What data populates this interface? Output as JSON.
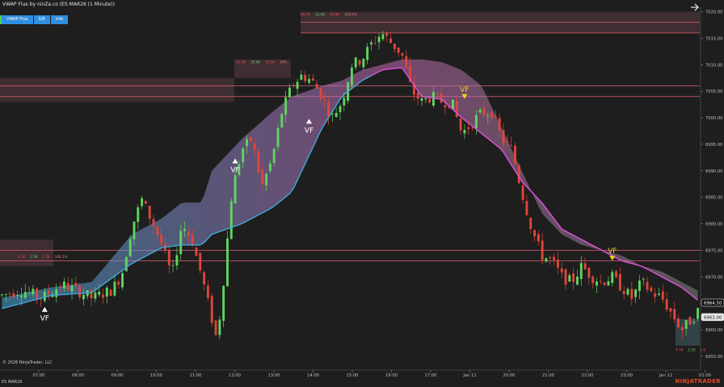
{
  "title": "VWAP Flux by ninZa.co (ES MAR26 (1 Minute))",
  "toolbar": [
    {
      "label": "VWAP Flux"
    },
    {
      "label": "S/R"
    },
    {
      "label": "Info"
    }
  ],
  "copyright": "© 2026 NinjaTrader, LLC",
  "instrument": "ES MAR26",
  "logo": "NINJATRADER",
  "signal_label": "VF",
  "colors": {
    "background": "#1e1e1e",
    "up_candle": "#5fd65f",
    "down_candle": "#e0463a",
    "vwap_bull": "#3fa8d8",
    "vwap_bear": "#e050e0",
    "signal_bull": "#ffffff",
    "signal_bear": "#f5d21a"
  },
  "sr_labels": {
    "top_volume": [
      "94.7K",
      "33.9K",
      "60.9K",
      "108.0%"
    ],
    "mid_volume": [
      "51.4K",
      "20.9K",
      "30.5K",
      "50%"
    ],
    "left_volume": [
      "4.2K",
      "2.5K",
      "1.7K",
      "106.2%"
    ],
    "bottom_volume": [
      "4.7K",
      "2.1K",
      "2.6"
    ]
  },
  "chart_data": {
    "type": "candlestick",
    "x": [
      "07:00",
      "08:00",
      "09:00",
      "10:00",
      "11:00",
      "12:00",
      "13:00",
      "14:00",
      "15:00",
      "16:00",
      "17:00",
      "Jan 11",
      "20:00",
      "21:00",
      "22:00",
      "23:00",
      "Jan 12",
      "01:00"
    ],
    "yticks": [
      6955.0,
      6960.0,
      6965.0,
      6970.0,
      6975.0,
      6980.0,
      6985.0,
      6990.0,
      6995.0,
      7000.0,
      7005.0,
      7010.0,
      7015.0,
      7020.0
    ],
    "ylim": [
      6953.0,
      7021.0
    ],
    "price_labels": [
      "6964.50",
      "6963.00"
    ],
    "price_path": [
      [
        0,
        6966.5
      ],
      [
        4,
        6967.5
      ],
      [
        8,
        6966.0
      ],
      [
        12,
        6968.5
      ],
      [
        16,
        6967.0
      ],
      [
        18,
        6966.0
      ],
      [
        22,
        6967.5
      ],
      [
        24,
        6970.5
      ],
      [
        26,
        6979.5
      ],
      [
        28,
        6984.5
      ],
      [
        30,
        6980.5
      ],
      [
        32,
        6976.0
      ],
      [
        34,
        6970.0
      ],
      [
        36,
        6980.0
      ],
      [
        38,
        6977.0
      ],
      [
        40,
        6970.0
      ],
      [
        42,
        6962.0
      ],
      [
        43,
        6958.0
      ],
      [
        44,
        6966.0
      ],
      [
        46,
        6986.0
      ],
      [
        48,
        6994.0
      ],
      [
        50,
        6996.0
      ],
      [
        52,
        6987.0
      ],
      [
        54,
        6992.0
      ],
      [
        56,
        7001.0
      ],
      [
        58,
        7006.0
      ],
      [
        60,
        7008.0
      ],
      [
        62,
        7007.0
      ],
      [
        64,
        7004.0
      ],
      [
        66,
        7000.0
      ],
      [
        68,
        7003.0
      ],
      [
        70,
        7010.0
      ],
      [
        72,
        7011.0
      ],
      [
        74,
        7014.0
      ],
      [
        76,
        7016.0
      ],
      [
        78,
        7014.0
      ],
      [
        80,
        7012.0
      ],
      [
        82,
        7005.0
      ],
      [
        84,
        7003.0
      ],
      [
        86,
        7004.0
      ],
      [
        88,
        7003.0
      ],
      [
        90,
        7003.0
      ],
      [
        92,
        6997.0
      ],
      [
        94,
        6999.0
      ],
      [
        96,
        7001.0
      ],
      [
        98,
        7001.0
      ],
      [
        100,
        6996.0
      ],
      [
        102,
        6994.0
      ],
      [
        104,
        6986.0
      ],
      [
        106,
        6979.0
      ],
      [
        108,
        6974.0
      ],
      [
        110,
        6973.0
      ],
      [
        112,
        6970.0
      ],
      [
        114,
        6969.0
      ],
      [
        116,
        6972.0
      ],
      [
        118,
        6970.0
      ],
      [
        120,
        6969.0
      ],
      [
        122,
        6970.0
      ],
      [
        124,
        6968.0
      ],
      [
        126,
        6966.0
      ],
      [
        128,
        6969.0
      ],
      [
        130,
        6967.0
      ],
      [
        132,
        6966.0
      ],
      [
        134,
        6963.0
      ],
      [
        136,
        6960.0
      ],
      [
        138,
        6962.0
      ],
      [
        140,
        6964.5
      ]
    ],
    "vwap_path": [
      [
        0,
        6964.0
      ],
      [
        10,
        6966.5
      ],
      [
        18,
        6967.0
      ],
      [
        26,
        6972.5
      ],
      [
        32,
        6975.5
      ],
      [
        36,
        6976.0
      ],
      [
        40,
        6976.0
      ],
      [
        42,
        6978.0
      ],
      [
        48,
        6980.0
      ],
      [
        54,
        6983.0
      ],
      [
        58,
        6986.0
      ],
      [
        64,
        6998.0
      ],
      [
        68,
        7004.0
      ],
      [
        72,
        7007.0
      ],
      [
        76,
        7009.0
      ],
      [
        80,
        7009.5
      ],
      [
        84,
        7004.0
      ],
      [
        88,
        7003.5
      ],
      [
        92,
        7000.0
      ],
      [
        96,
        6997.0
      ],
      [
        100,
        6994.0
      ],
      [
        104,
        6988.0
      ],
      [
        108,
        6984.0
      ],
      [
        112,
        6979.0
      ],
      [
        116,
        6977.0
      ],
      [
        120,
        6975.0
      ],
      [
        124,
        6973.0
      ],
      [
        128,
        6972.0
      ],
      [
        132,
        6970.0
      ],
      [
        136,
        6968.0
      ],
      [
        140,
        6965.0
      ]
    ],
    "cloud_outer_path": [
      [
        0,
        6966.0
      ],
      [
        10,
        6968.0
      ],
      [
        18,
        6969.0
      ],
      [
        26,
        6978.0
      ],
      [
        32,
        6981.0
      ],
      [
        36,
        6984.0
      ],
      [
        40,
        6984.0
      ],
      [
        42,
        6990.0
      ],
      [
        48,
        6996.0
      ],
      [
        54,
        7001.0
      ],
      [
        58,
        7004.0
      ],
      [
        64,
        7006.0
      ],
      [
        68,
        7007.0
      ],
      [
        72,
        7009.0
      ],
      [
        76,
        7010.0
      ],
      [
        80,
        7011.0
      ],
      [
        84,
        7011.0
      ],
      [
        88,
        7010.5
      ],
      [
        92,
        7009.0
      ],
      [
        96,
        7006.0
      ],
      [
        100,
        6998.0
      ],
      [
        104,
        6990.0
      ],
      [
        108,
        6982.0
      ],
      [
        112,
        6978.0
      ],
      [
        116,
        6976.0
      ],
      [
        120,
        6975.0
      ],
      [
        124,
        6974.0
      ],
      [
        128,
        6972.0
      ],
      [
        132,
        6971.0
      ],
      [
        136,
        6969.0
      ],
      [
        140,
        6967.0
      ]
    ],
    "signals": [
      {
        "x": 11,
        "y": 6964.0,
        "direction": "up"
      },
      {
        "x": 60,
        "y": 6992.0,
        "direction": "up"
      },
      {
        "x": 79,
        "y": 6999.5,
        "direction": "up"
      },
      {
        "x": 119,
        "y": 7004.0,
        "direction": "down"
      },
      {
        "x": 157,
        "y": 6973.5,
        "direction": "down"
      }
    ],
    "sr_zones": [
      {
        "y_top": 7018.0,
        "y_bottom": 7016.0,
        "color": "#e06070"
      },
      {
        "y_top": 7006.0,
        "y_bottom": 7004.0,
        "color": "#e06070"
      },
      {
        "y_top": 6975.0,
        "y_bottom": 6973.0,
        "color": "#e06070"
      }
    ]
  }
}
